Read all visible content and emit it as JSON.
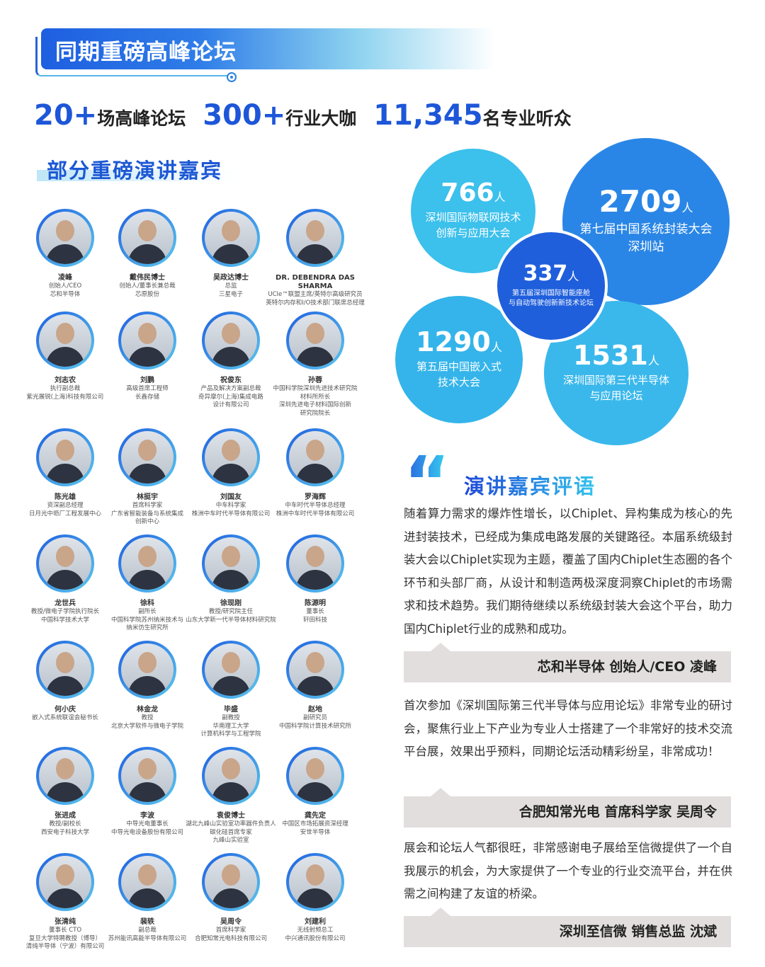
{
  "header": {
    "title": "同期重磅高峰论坛"
  },
  "stats": [
    {
      "number": "20+",
      "label": "场高峰论坛"
    },
    {
      "number": "300+",
      "label": "行业大咖"
    },
    {
      "number": "11,345",
      "label": "名专业听众"
    }
  ],
  "speakers_title": "部分重磅演讲嘉宾",
  "speakers": [
    {
      "name": "凌峰",
      "lines": [
        "创始人/CEO",
        "芯和半导体"
      ]
    },
    {
      "name": "戴伟民博士",
      "lines": [
        "创始人/董事长兼总裁",
        "芯原股份"
      ]
    },
    {
      "name": "吴政达博士",
      "lines": [
        "总监",
        "三星电子"
      ]
    },
    {
      "name": "DR. DEBENDRA DAS SHARMA",
      "lines": [
        "UCIe™联盟主席/英特尔高级研究员",
        "英特尔内存和I/O技术部门联席总经理"
      ]
    },
    {
      "name": "刘志农",
      "lines": [
        "执行副总裁",
        "紫光展锐(上海)科技有限公司"
      ]
    },
    {
      "name": "刘鹏",
      "lines": [
        "高级首席工程师",
        "长鑫存储"
      ]
    },
    {
      "name": "祝俊东",
      "lines": [
        "产品及解决方案副总裁",
        "奇异摩尔(上海)集成电路",
        "设计有限公司"
      ]
    },
    {
      "name": "孙蓉",
      "lines": [
        "中国科学院深圳先进技术研究院",
        "材料所所长",
        "深圳先进电子材料国际创新",
        "研究院院长"
      ]
    },
    {
      "name": "陈光雄",
      "lines": [
        "资深副总经理",
        "日月光中坜厂工程发展中心"
      ]
    },
    {
      "name": "林挺宇",
      "lines": [
        "首席科学家",
        "广东省智能装备与系统集成",
        "创新中心"
      ]
    },
    {
      "name": "刘国友",
      "lines": [
        "中车科学家",
        "株洲中车时代半导体有限公司"
      ]
    },
    {
      "name": "罗海辉",
      "lines": [
        "中车时代半导体总经理",
        "株洲中车时代半导体有限公司"
      ]
    },
    {
      "name": "龙世兵",
      "lines": [
        "教授/微电子学院执行院长",
        "中国科学技术大学"
      ]
    },
    {
      "name": "徐科",
      "lines": [
        "副所长",
        "中国科学院苏州纳米技术与",
        "纳米仿生研究所"
      ]
    },
    {
      "name": "徐现刚",
      "lines": [
        "教授/研究院主任",
        "山东大学新一代半导体材料研究院"
      ]
    },
    {
      "name": "陈源明",
      "lines": [
        "董事长",
        "轩田科技"
      ]
    },
    {
      "name": "何小庆",
      "lines": [
        "嵌入式系统联谊会秘书长"
      ]
    },
    {
      "name": "林金龙",
      "lines": [
        "教授",
        "北京大学软件与微电子学院"
      ]
    },
    {
      "name": "毕盛",
      "lines": [
        "副教授",
        "华南理工大学",
        "计算机科学与工程学院"
      ]
    },
    {
      "name": "赵地",
      "lines": [
        "副研究员",
        "中国科学院计算技术研究所"
      ]
    },
    {
      "name": "张进成",
      "lines": [
        "教授/副校长",
        "西安电子科技大学"
      ]
    },
    {
      "name": "李波",
      "lines": [
        "中导光电董事长",
        "中导光电设备股份有限公司"
      ]
    },
    {
      "name": "袁俊博士",
      "lines": [
        "湖北九峰山实验室功率器件负责人",
        "碳化硅首席专家",
        "九峰山实验室"
      ]
    },
    {
      "name": "龚先定",
      "lines": [
        "中国区市场拓展资深经理",
        "安世半导体"
      ]
    },
    {
      "name": "张清纯",
      "lines": [
        "董事长 CTO",
        "复旦大学特聘教授（博导）",
        "清纯半导体（宁波）有限公司"
      ]
    },
    {
      "name": "裴轶",
      "lines": [
        "副总裁",
        "苏州能讯高能半导体有限公司"
      ]
    },
    {
      "name": "吴周令",
      "lines": [
        "首席科学家",
        "合肥知常光电科技有限公司"
      ]
    },
    {
      "name": "刘建利",
      "lines": [
        "无线射频总工",
        "中兴通讯股份有限公司"
      ]
    }
  ],
  "bubbles": [
    {
      "number": "766",
      "unit": "人",
      "desc": [
        "深圳国际物联网技术",
        "创新与应用大会"
      ],
      "color": "#3cc0ec"
    },
    {
      "number": "2709",
      "unit": "人",
      "desc": [
        "第七届中国系统封装大会",
        "深圳站"
      ],
      "color": "#2a86e6"
    },
    {
      "number": "1290",
      "unit": "人",
      "desc": [
        "第五届中国嵌入式",
        "技术大会"
      ],
      "color": "#34b4ea"
    },
    {
      "number": "1531",
      "unit": "人",
      "desc": [
        "深圳国际第三代半导体",
        "与应用论坛"
      ],
      "color": "#3ab8ec"
    },
    {
      "number": "337",
      "unit": "人",
      "desc": [
        "第五届深圳国际智能座舱",
        "与自动驾驶创新新技术论坛"
      ],
      "color": "#1f5fdc"
    }
  ],
  "reviews_title": "演讲嘉宾评语",
  "reviews": [
    {
      "text": "随着算力需求的爆炸性增长，以Chiplet、异构集成为核心的先进封装技术，已经成为集成电路发展的关键路径。本届系统级封装大会以Chiplet实现为主题，覆盖了国内Chiplet生态圈的各个环节和头部厂商，从设计和制造两极深度洞察Chiplet的市场需求和技术趋势。我们期待继续以系统级封装大会这个平台，助力国内Chiplet行业的成熟和成功。",
      "author": "芯和半导体 创始人/CEO 凌峰"
    },
    {
      "text": "首次参加《深圳国际第三代半导体与应用论坛》非常专业的研讨会，聚焦行业上下产业为专业人士搭建了一个非常好的技术交流平台展，效果出乎预料，同期论坛活动精彩纷呈，非常成功！",
      "author": "合肥知常光电 首席科学家 吴周令"
    },
    {
      "text": "展会和论坛人气都很旺，非常感谢电子展给至信微提供了一个自我展示的机会，为大家提供了一个专业的行业交流平台，并在供需之间构建了友谊的桥梁。",
      "author": "深圳至信微 销售总监 沈斌"
    }
  ]
}
